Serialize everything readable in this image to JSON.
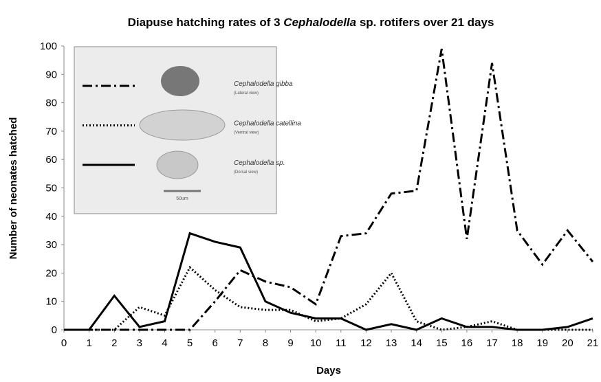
{
  "chart_data": {
    "type": "line",
    "title_parts": [
      "Diapuse hatching rates of 3 ",
      "Cephalodella",
      " sp. rotifers over 21 days"
    ],
    "xlabel": "Days",
    "ylabel": "Number of neonates hatched",
    "x": [
      0,
      1,
      2,
      3,
      4,
      5,
      6,
      7,
      8,
      9,
      10,
      11,
      12,
      13,
      14,
      15,
      16,
      17,
      18,
      19,
      20,
      21
    ],
    "xlim": [
      0,
      21
    ],
    "xticks": [
      0,
      1,
      2,
      3,
      4,
      5,
      6,
      7,
      8,
      9,
      10,
      11,
      12,
      13,
      14,
      15,
      16,
      17,
      18,
      19,
      20,
      21
    ],
    "ylim": [
      0,
      100
    ],
    "yticks": [
      0,
      10,
      20,
      30,
      40,
      50,
      60,
      70,
      80,
      90,
      100
    ],
    "series": [
      {
        "name": "Cephalodella gibba",
        "view": "(Lateral view)",
        "color": "#000000",
        "linestyle": "dashdot",
        "values": [
          0,
          0,
          0,
          0,
          0,
          0,
          10,
          21,
          17,
          15,
          9,
          33,
          34,
          48,
          49,
          99,
          32,
          94,
          35,
          23,
          35,
          24
        ]
      },
      {
        "name": "Cephalodella catellina",
        "view": "(Ventral view)",
        "color": "#000000",
        "linestyle": "dotted",
        "values": [
          0,
          0,
          0,
          8,
          5,
          22,
          14,
          8,
          7,
          7,
          3,
          4,
          9,
          20,
          3,
          0,
          1,
          3,
          0,
          0,
          0,
          0
        ]
      },
      {
        "name": "Cephalodella sp.",
        "view": "(Dorsal view)",
        "color": "#000000",
        "linestyle": "solid",
        "values": [
          0,
          0,
          12,
          1,
          3,
          34,
          31,
          29,
          10,
          6,
          4,
          4,
          0,
          2,
          0,
          4,
          1,
          1,
          0,
          0,
          1,
          4
        ]
      }
    ],
    "scale_bar_label": "50um"
  }
}
